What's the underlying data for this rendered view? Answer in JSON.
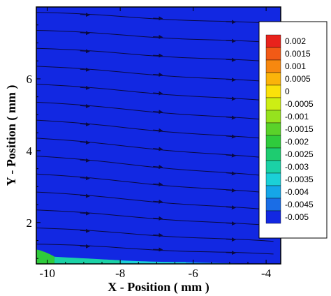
{
  "chart_data": {
    "type": "heatmap",
    "subtype": "contour-with-streamlines",
    "title": "",
    "xlabel": "X - Position ( mm )",
    "ylabel": "Y - Position ( mm )",
    "xlim": [
      -10.3,
      -3.6
    ],
    "ylim": [
      0.85,
      8.0
    ],
    "x_ticks": [
      -10,
      -8,
      -6,
      -4
    ],
    "y_ticks": [
      2,
      4,
      6
    ],
    "grid": false,
    "legend_position": "right",
    "colorbar": {
      "levels": [
        0.002,
        0.0015,
        0.001,
        0.0005,
        0,
        -0.0005,
        -0.001,
        -0.0015,
        -0.002,
        -0.0025,
        -0.003,
        -0.0035,
        -0.004,
        -0.0045,
        -0.005
      ],
      "labels": [
        "0.002",
        "0.0015",
        "0.001",
        "0.0005",
        "0",
        "-0.0005",
        "-0.001",
        "-0.0015",
        "-0.002",
        "-0.0025",
        "-0.003",
        "-0.0035",
        "-0.004",
        "-0.0045",
        "-0.005"
      ],
      "colors": [
        "#e8231c",
        "#f25a16",
        "#f7880f",
        "#fbb40a",
        "#fbe20a",
        "#cdee14",
        "#96e21e",
        "#5ad22a",
        "#2fcb3c",
        "#1ecc70",
        "#1bd1a6",
        "#1bd0d7",
        "#15a6e8",
        "#1a6de6",
        "#1228e2"
      ]
    },
    "field": {
      "background_value": -0.005,
      "near_wall_band": [
        {
          "x": -10.3,
          "y": 1.25,
          "value": -0.002
        },
        {
          "x": -9.8,
          "y": 1.05,
          "value": -0.003
        },
        {
          "x": -8.0,
          "y": 0.95,
          "value": -0.0035
        },
        {
          "x": -6.2,
          "y": 0.9,
          "value": -0.004
        }
      ]
    },
    "streamlines": [
      {
        "y_start": 7.85,
        "slope": -0.05
      },
      {
        "y_start": 7.35,
        "slope": -0.055
      },
      {
        "y_start": 6.85,
        "slope": -0.06
      },
      {
        "y_start": 6.35,
        "slope": -0.07
      },
      {
        "y_start": 5.85,
        "slope": -0.075
      },
      {
        "y_start": 5.35,
        "slope": -0.08
      },
      {
        "y_start": 4.85,
        "slope": -0.085
      },
      {
        "y_start": 4.35,
        "slope": -0.09
      },
      {
        "y_start": 3.85,
        "slope": -0.09
      },
      {
        "y_start": 3.35,
        "slope": -0.085
      },
      {
        "y_start": 2.85,
        "slope": -0.08
      },
      {
        "y_start": 2.35,
        "slope": -0.07
      },
      {
        "y_start": 1.85,
        "slope": -0.06
      },
      {
        "y_start": 1.4,
        "slope": -0.045
      }
    ],
    "colors": {
      "background": "#1228e2",
      "streamline": "#0a0a40"
    }
  }
}
